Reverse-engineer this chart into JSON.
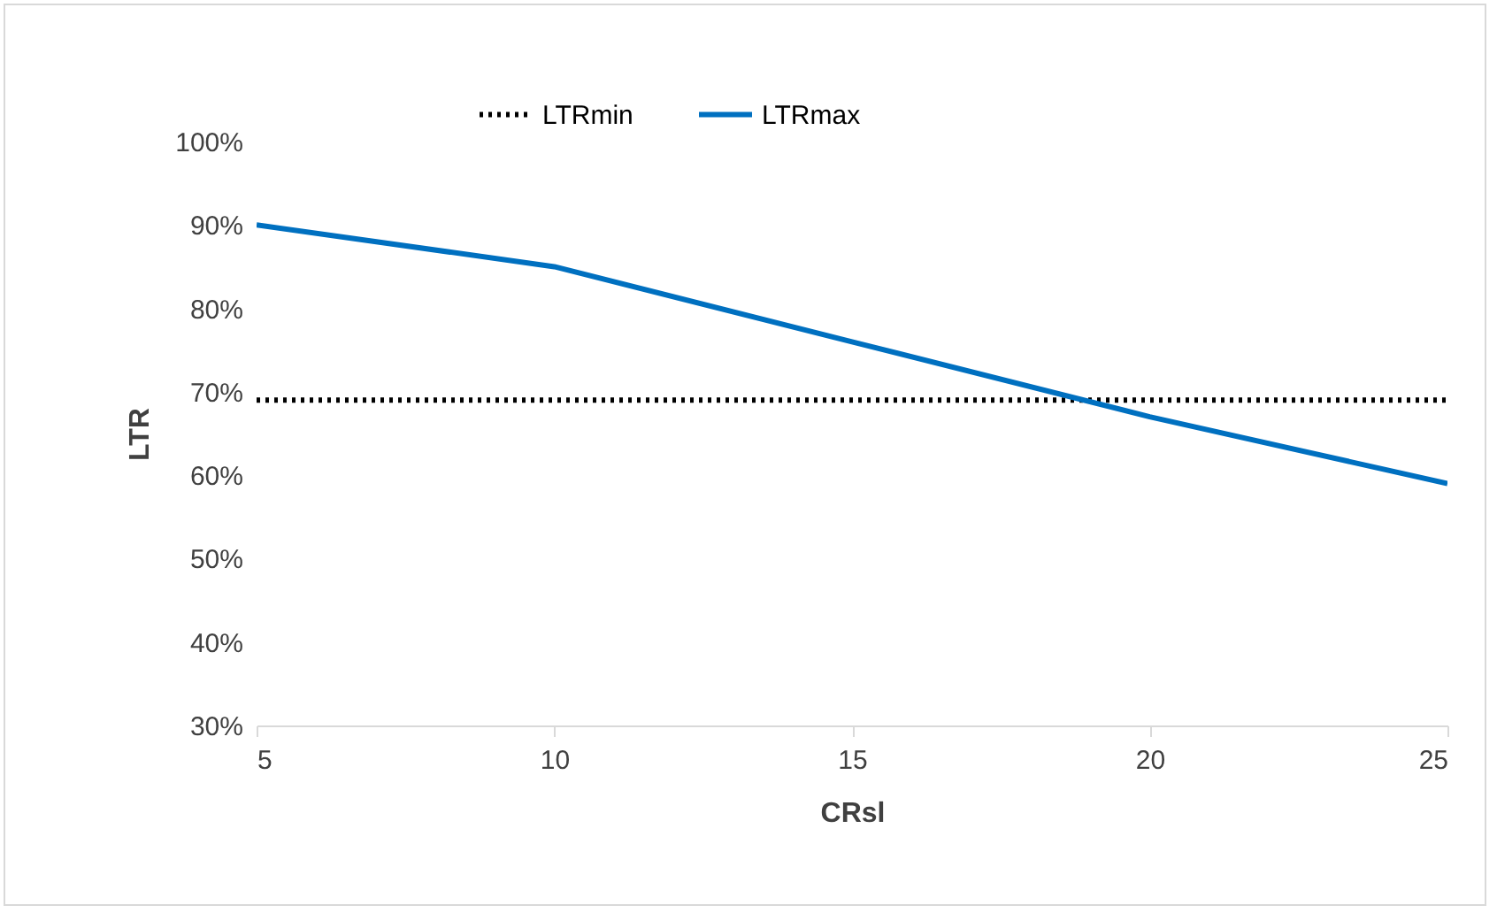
{
  "chart_data": {
    "type": "line",
    "xlabel": "CRsl",
    "ylabel": "LTR",
    "x": [
      5,
      10,
      15,
      20,
      25
    ],
    "series": [
      {
        "name": "LTRmin",
        "color": "#000000",
        "line_style": "dotted",
        "values": [
          69,
          69,
          69,
          69,
          69
        ]
      },
      {
        "name": "LTRmax",
        "color": "#0070c0",
        "line_style": "solid",
        "values": [
          90,
          85,
          76,
          67,
          59
        ]
      }
    ],
    "xlim": [
      5,
      25
    ],
    "xticks": [
      5,
      10,
      15,
      20,
      25
    ],
    "ylim": [
      30,
      100
    ],
    "yticks": [
      {
        "value": 30,
        "label": "30%"
      },
      {
        "value": 40,
        "label": "40%"
      },
      {
        "value": 50,
        "label": "50%"
      },
      {
        "value": 60,
        "label": "60%"
      },
      {
        "value": 70,
        "label": "70%"
      },
      {
        "value": 80,
        "label": "80%"
      },
      {
        "value": 90,
        "label": "90%"
      },
      {
        "value": 100,
        "label": "100%"
      }
    ],
    "grid": false,
    "legend": "top",
    "marker": "none"
  }
}
